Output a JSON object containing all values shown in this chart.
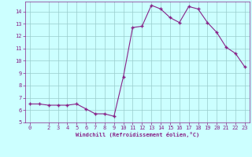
{
  "x": [
    0,
    1,
    2,
    3,
    4,
    5,
    6,
    7,
    8,
    9,
    10,
    11,
    12,
    13,
    14,
    15,
    16,
    17,
    18,
    19,
    20,
    21,
    22,
    23
  ],
  "y": [
    6.5,
    6.5,
    6.4,
    6.4,
    6.4,
    6.5,
    6.1,
    5.7,
    5.7,
    5.5,
    8.7,
    12.7,
    12.8,
    14.5,
    14.2,
    13.5,
    13.1,
    14.4,
    14.2,
    13.1,
    12.3,
    11.1,
    10.6,
    9.5
  ],
  "line_color": "#882288",
  "marker": "+",
  "marker_color": "#882288",
  "bg_color": "#ccffff",
  "grid_color": "#99cccc",
  "xlabel": "Windchill (Refroidissement éolien,°C)",
  "xlabel_color": "#882288",
  "tick_color": "#882288",
  "ylim": [
    5,
    14.8
  ],
  "xlim": [
    -0.5,
    23.5
  ],
  "yticks": [
    5,
    6,
    7,
    8,
    9,
    10,
    11,
    12,
    13,
    14
  ],
  "xticks": [
    0,
    2,
    3,
    4,
    5,
    6,
    7,
    8,
    9,
    10,
    11,
    12,
    13,
    14,
    15,
    16,
    17,
    18,
    19,
    20,
    21,
    22,
    23
  ],
  "figsize": [
    3.2,
    2.0
  ],
  "dpi": 100
}
